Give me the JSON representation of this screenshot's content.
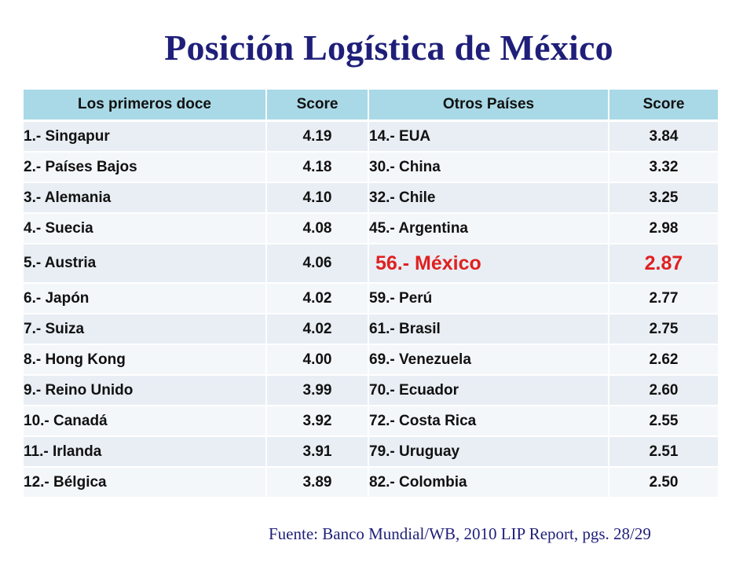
{
  "title": "Posición Logística de México",
  "table": {
    "headers": [
      "Los primeros doce",
      "Score",
      "Otros Países",
      "Score"
    ],
    "rows": [
      [
        "1.- Singapur",
        "4.19",
        "14.- EUA",
        "3.84"
      ],
      [
        "2.- Países Bajos",
        "4.18",
        "30.- China",
        "3.32"
      ],
      [
        "3.- Alemania",
        "4.10",
        "32.- Chile",
        "3.25"
      ],
      [
        "4.- Suecia",
        "4.08",
        "45.- Argentina",
        "2.98"
      ],
      [
        "5.- Austria",
        "4.06",
        "56.- México",
        "2.87"
      ],
      [
        "6.- Japón",
        "4.02",
        "59.- Perú",
        "2.77"
      ],
      [
        "7.- Suiza",
        "4.02",
        "61.- Brasil",
        "2.75"
      ],
      [
        "8.- Hong Kong",
        "4.00",
        "69.- Venezuela",
        "2.62"
      ],
      [
        "9.- Reino Unido",
        "3.99",
        "70.- Ecuador",
        "2.60"
      ],
      [
        "10.- Canadá",
        "3.92",
        "72.- Costa Rica",
        "2.55"
      ],
      [
        "11.- Irlanda",
        "3.91",
        "79.- Uruguay",
        "2.51"
      ],
      [
        "12.- Bélgica",
        "3.89",
        "82.- Colombia",
        "2.50"
      ]
    ],
    "highlight_row": 4,
    "highlight_color": "#e0201f",
    "header_color": "#a9d9e6"
  },
  "source": "Fuente: Banco Mundial/WB, 2010 LIP Report, pgs. 28/29"
}
